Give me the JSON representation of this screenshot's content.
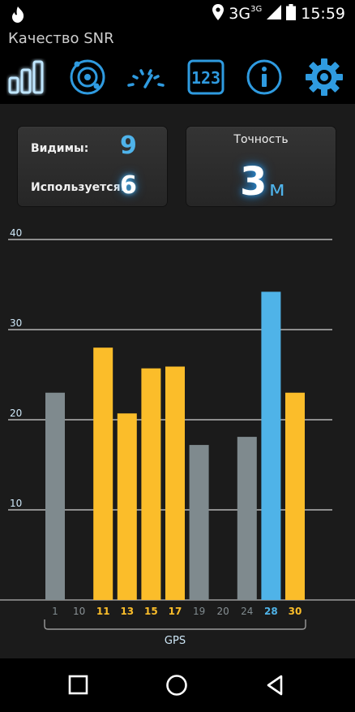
{
  "status_bar": {
    "network": "3G",
    "network_sub": "3G",
    "time": "15:59"
  },
  "app": {
    "title": "Качество SNR"
  },
  "toolbar": {
    "items": [
      {
        "icon": "signal-bars-icon",
        "active": true
      },
      {
        "icon": "satellite-orbit-icon",
        "active": false
      },
      {
        "icon": "speedometer-icon",
        "active": false
      },
      {
        "icon": "digital-counter-icon",
        "active": false
      },
      {
        "icon": "info-icon",
        "active": false
      },
      {
        "icon": "gear-icon",
        "active": false
      }
    ],
    "counter_digits": "123"
  },
  "summary": {
    "visible_label": "Видимы:",
    "visible_value": "9",
    "used_label": "Используется:",
    "used_value": "6"
  },
  "accuracy": {
    "title": "Точность",
    "value": "3",
    "unit": "м"
  },
  "chart_data": {
    "type": "bar",
    "categories": [
      "1",
      "10",
      "11",
      "13",
      "15",
      "17",
      "19",
      "20",
      "24",
      "28",
      "30"
    ],
    "values": [
      23,
      0,
      28,
      20.7,
      25.7,
      25.9,
      17.2,
      0,
      18.1,
      34.2,
      23
    ],
    "status": [
      "visible",
      "none",
      "used",
      "used",
      "used",
      "used",
      "visible",
      "none",
      "visible",
      "selected",
      "used"
    ],
    "ylim": [
      0,
      40
    ],
    "yticks": [
      10,
      20,
      30,
      40
    ],
    "group_label": "GPS",
    "grid": true,
    "colors": {
      "used": "#fbbd2a",
      "visible": "#7f8a8e",
      "selected": "#4fb3e8",
      "none": "#8a9296"
    }
  }
}
